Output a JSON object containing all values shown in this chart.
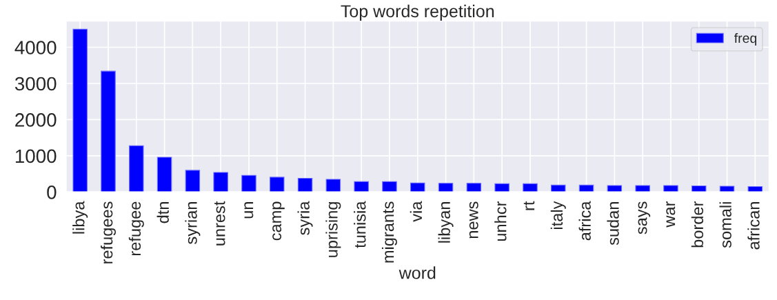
{
  "chart_data": {
    "type": "bar",
    "title": "Top words repetition",
    "xlabel": "word",
    "categories": [
      "libya",
      "refugees",
      "refugee",
      "dtn",
      "syrian",
      "unrest",
      "un",
      "camp",
      "syria",
      "uprising",
      "tunisia",
      "migrants",
      "via",
      "libyan",
      "news",
      "unhcr",
      "rt",
      "italy",
      "africa",
      "sudan",
      "says",
      "war",
      "border",
      "somali",
      "african"
    ],
    "series": [
      {
        "name": "freq",
        "color": "#0000ff",
        "values": [
          4500,
          3340,
          1280,
          960,
          600,
          540,
          460,
          410,
          380,
          350,
          290,
          290,
          250,
          240,
          240,
          230,
          230,
          190,
          190,
          180,
          180,
          180,
          170,
          160,
          150
        ]
      }
    ],
    "ylim": [
      0,
      4725
    ],
    "yticks": [
      0,
      1000,
      2000,
      3000,
      4000
    ],
    "grid": true,
    "legend": "top right"
  }
}
